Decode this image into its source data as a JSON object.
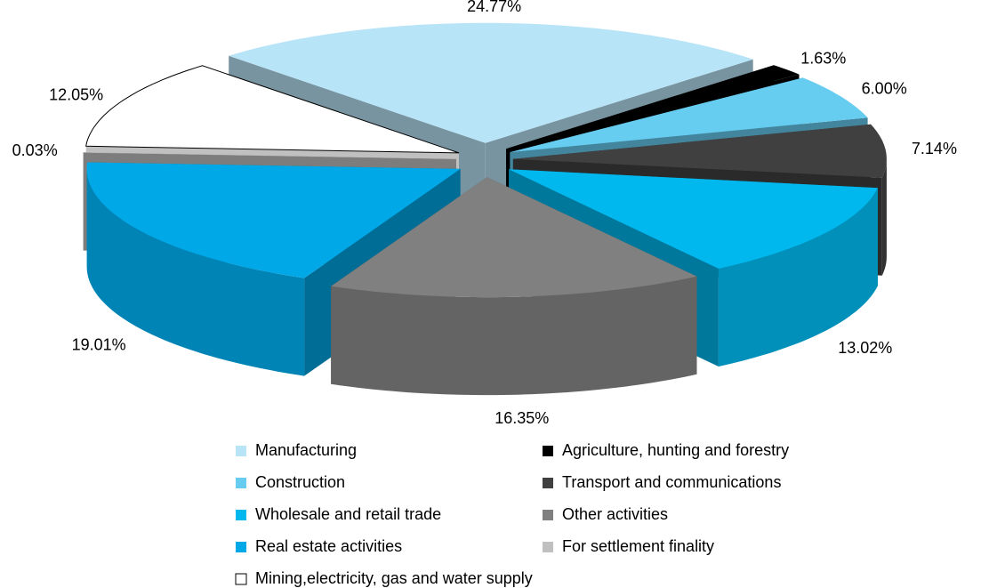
{
  "chart_data": {
    "type": "pie3d",
    "categories": [
      "Manufacturing",
      "Agriculture, hunting and forestry",
      "Construction",
      "Transport and communications",
      "Wholesale and retail trade",
      "Other activities",
      "Real estate activities",
      "For settlement finality",
      "Mining,electricity, gas and water supply"
    ],
    "values": [
      24.77,
      1.63,
      6.0,
      7.14,
      13.02,
      16.35,
      19.01,
      0.03,
      12.05
    ],
    "value_labels": [
      "24.77%",
      "1.63%",
      "6.00%",
      "7.14%",
      "13.02%",
      "16.35%",
      "19.01%",
      "0.03%",
      "12.05%"
    ],
    "colors": [
      "#b8e4f8",
      "#000000",
      "#66ccf0",
      "#404040",
      "#00b8ee",
      "#808080",
      "#00a8e8",
      "#c0c0c0",
      "#ffffff"
    ],
    "legend": "bottom"
  }
}
